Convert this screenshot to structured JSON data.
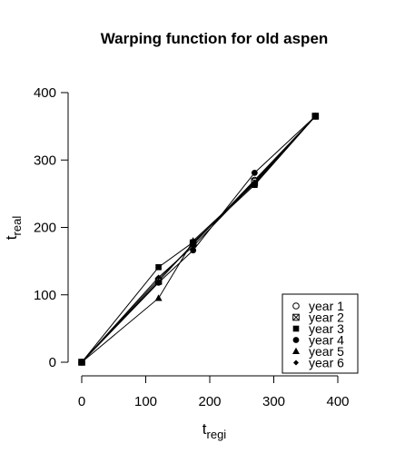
{
  "chart_data": {
    "type": "line",
    "title": "Warping function for old aspen",
    "xlabel": {
      "main": "t",
      "sub": "regi"
    },
    "ylabel": {
      "main": "t",
      "sub": "real"
    },
    "xlim": [
      0,
      400
    ],
    "ylim": [
      0,
      400
    ],
    "x_ticks": [
      0,
      100,
      200,
      300,
      400
    ],
    "y_ticks": [
      0,
      100,
      200,
      300,
      400
    ],
    "grid": false,
    "legend_position": "bottom-right",
    "series": [
      {
        "name": "year 1",
        "marker": "circle-open",
        "x": [
          0,
          120,
          174,
          270,
          365
        ],
        "y": [
          0,
          123,
          175,
          270,
          365
        ]
      },
      {
        "name": "year 2",
        "marker": "square-x",
        "x": [
          0,
          120,
          174,
          270,
          365
        ],
        "y": [
          0,
          120,
          176,
          268,
          365
        ]
      },
      {
        "name": "year 3",
        "marker": "square-filled",
        "x": [
          0,
          120,
          174,
          270,
          365
        ],
        "y": [
          0,
          141,
          178,
          263,
          365
        ]
      },
      {
        "name": "year 4",
        "marker": "circle-filled",
        "x": [
          0,
          120,
          174,
          270,
          365
        ],
        "y": [
          0,
          118,
          166,
          281,
          365
        ]
      },
      {
        "name": "year 5",
        "marker": "triangle-filled",
        "x": [
          0,
          120,
          174,
          270,
          365
        ],
        "y": [
          0,
          95,
          180,
          265,
          365
        ]
      },
      {
        "name": "year 6",
        "marker": "diamond-filled",
        "x": [
          0,
          120,
          174,
          270,
          365
        ],
        "y": [
          0,
          126,
          172,
          267,
          365
        ]
      }
    ]
  }
}
